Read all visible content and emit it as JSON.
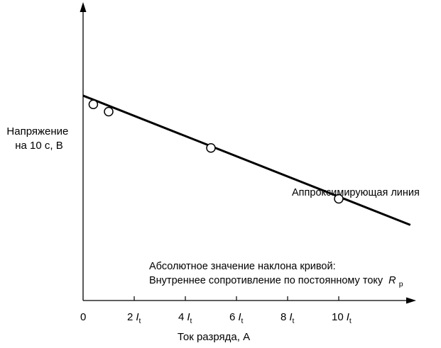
{
  "chart_data": {
    "type": "scatter",
    "ylabel_lines": [
      "Напряжение",
      "на 10 с, В"
    ],
    "xlabel": "Ток разряда, А",
    "x_ticks": [
      {
        "x": 0,
        "text": "0",
        "italic": "",
        "sub": ""
      },
      {
        "x": 2,
        "text": "2",
        "italic": "I",
        "sub": "t"
      },
      {
        "x": 4,
        "text": "4",
        "italic": "I",
        "sub": "t"
      },
      {
        "x": 6,
        "text": "6",
        "italic": "I",
        "sub": "t"
      },
      {
        "x": 8,
        "text": "8",
        "italic": "I",
        "sub": "t"
      },
      {
        "x": 10,
        "text": "10",
        "italic": "I",
        "sub": "t"
      }
    ],
    "xlim": [
      0,
      13
    ],
    "ylim": [
      0,
      10
    ],
    "points": [
      {
        "x": 0.4,
        "y": 6.75
      },
      {
        "x": 1.0,
        "y": 6.5
      },
      {
        "x": 5.0,
        "y": 5.25
      },
      {
        "x": 10.0,
        "y": 3.5
      }
    ],
    "fit_line": {
      "x": [
        0,
        12.8
      ],
      "y": [
        7.05,
        2.6
      ]
    },
    "annotations": {
      "fit_label": "Аппроксимирующая линия",
      "slope_line1": "Абсолютное значение наклона кривой:",
      "slope_line2": "Внутреннее сопротивление по постоянному току",
      "slope_symbol": "R",
      "slope_symbol_sub": "p"
    }
  }
}
